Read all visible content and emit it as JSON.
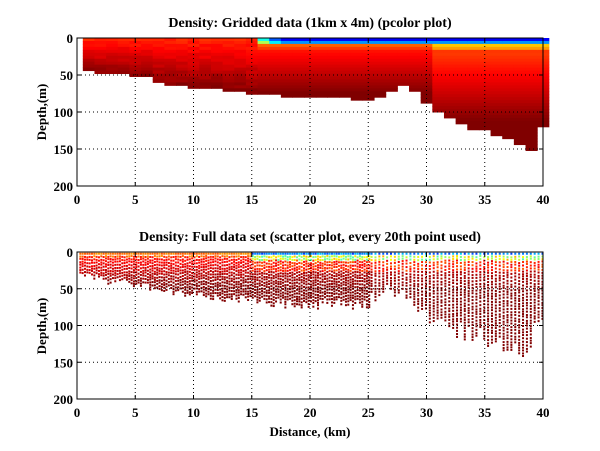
{
  "chart_data": [
    {
      "type": "heatmap",
      "title": "Density: Gridded data (1km x 4m) (pcolor plot)",
      "xlabel": "",
      "ylabel": "Depth,(m)",
      "xlim": [
        0,
        40
      ],
      "ylim": [
        200,
        0
      ],
      "y_reversed": true,
      "grid": true,
      "grid_style": "dotted",
      "xticks": [
        "0",
        "5",
        "10",
        "15",
        "20",
        "25",
        "30",
        "35",
        "40"
      ],
      "yticks": [
        "0",
        "50",
        "100",
        "150",
        "200"
      ],
      "colormap": "jet",
      "cell_size": {
        "x_km": 1,
        "y_m": 4
      },
      "bottom_depth_profile": {
        "x": [
          0,
          1,
          2,
          3,
          4,
          5,
          6,
          7,
          8,
          9,
          10,
          11,
          12,
          13,
          14,
          15,
          16,
          17,
          18,
          19,
          20,
          21,
          22,
          23,
          24,
          25,
          26,
          27,
          28,
          29,
          30,
          31,
          32,
          33,
          34,
          35,
          36,
          37,
          38,
          39,
          40
        ],
        "depth": [
          44,
          48,
          48,
          48,
          52,
          52,
          60,
          64,
          64,
          68,
          68,
          68,
          72,
          72,
          76,
          76,
          76,
          80,
          80,
          80,
          80,
          80,
          80,
          84,
          84,
          80,
          72,
          64,
          72,
          88,
          100,
          108,
          116,
          124,
          124,
          132,
          136,
          144,
          152,
          120,
          120
        ]
      },
      "surface_light_layer": {
        "x_start": 15,
        "note": "blue/cyan low-density layer at surface from ~15 km to 40 km, depth ~0-20 m"
      }
    },
    {
      "type": "scatter",
      "title": "Density: Full data set (scatter plot, every 20th point used)",
      "xlabel": "Distance, (km)",
      "ylabel": "Depth,(m)",
      "xlim": [
        0,
        40
      ],
      "ylim": [
        200,
        0
      ],
      "y_reversed": true,
      "grid": true,
      "grid_style": "dotted",
      "xticks": [
        "0",
        "5",
        "10",
        "15",
        "20",
        "25",
        "30",
        "35",
        "40"
      ],
      "yticks": [
        "0",
        "50",
        "100",
        "150",
        "200"
      ],
      "colormap": "jet",
      "cast_max_depth": {
        "x": [
          0,
          1,
          2,
          3,
          4,
          5,
          6,
          7,
          8,
          9,
          10,
          11,
          12,
          13,
          14,
          15,
          16,
          17,
          18,
          19,
          20,
          21,
          22,
          23,
          24,
          25,
          26,
          27,
          28,
          29,
          30,
          31,
          32,
          33,
          34,
          35,
          36,
          37,
          38,
          39
        ],
        "depth": [
          30,
          36,
          40,
          40,
          44,
          46,
          50,
          54,
          56,
          58,
          60,
          62,
          64,
          66,
          68,
          70,
          70,
          72,
          72,
          74,
          74,
          72,
          74,
          76,
          74,
          62,
          52,
          60,
          70,
          84,
          96,
          104,
          112,
          118,
          120,
          128,
          132,
          140,
          148,
          100
        ]
      }
    }
  ]
}
